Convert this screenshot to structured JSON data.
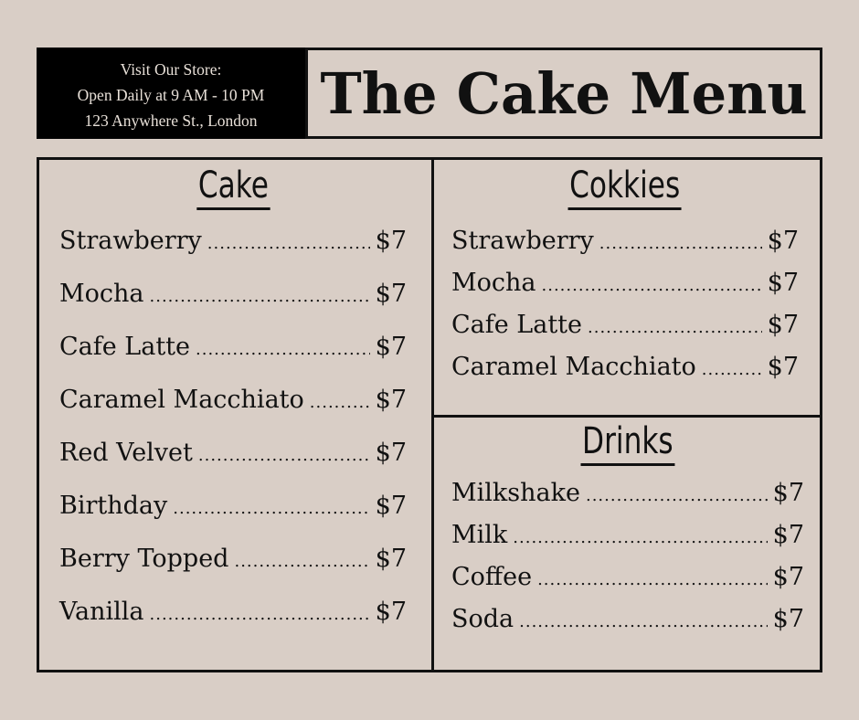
{
  "store_info": {
    "line1": "Visit Our Store:",
    "line2": "Open Daily at 9 AM - 10 PM",
    "line3": "123 Anywhere St., London"
  },
  "title": "The Cake Menu",
  "sections": {
    "cake": {
      "heading": "Cake",
      "items": [
        {
          "name": "Strawberry",
          "price": "$7"
        },
        {
          "name": "Mocha",
          "price": "$7"
        },
        {
          "name": "Cafe Latte",
          "price": "$7"
        },
        {
          "name": "Caramel Macchiato",
          "price": "$7"
        },
        {
          "name": "Red Velvet",
          "price": "$7"
        },
        {
          "name": "Birthday",
          "price": "$7"
        },
        {
          "name": "Berry Topped",
          "price": "$7"
        },
        {
          "name": "Vanilla",
          "price": "$7"
        }
      ]
    },
    "cookies": {
      "heading": "Cokkies",
      "items": [
        {
          "name": "Strawberry",
          "price": "$7"
        },
        {
          "name": "Mocha",
          "price": "$7"
        },
        {
          "name": "Cafe Latte",
          "price": "$7"
        },
        {
          "name": "Caramel Macchiato",
          "price": "$7"
        }
      ]
    },
    "drinks": {
      "heading": "Drinks",
      "items": [
        {
          "name": "Milkshake",
          "price": "$7"
        },
        {
          "name": "Milk",
          "price": "$7"
        },
        {
          "name": "Coffee",
          "price": "$7"
        },
        {
          "name": "Soda",
          "price": "$7"
        }
      ]
    }
  }
}
